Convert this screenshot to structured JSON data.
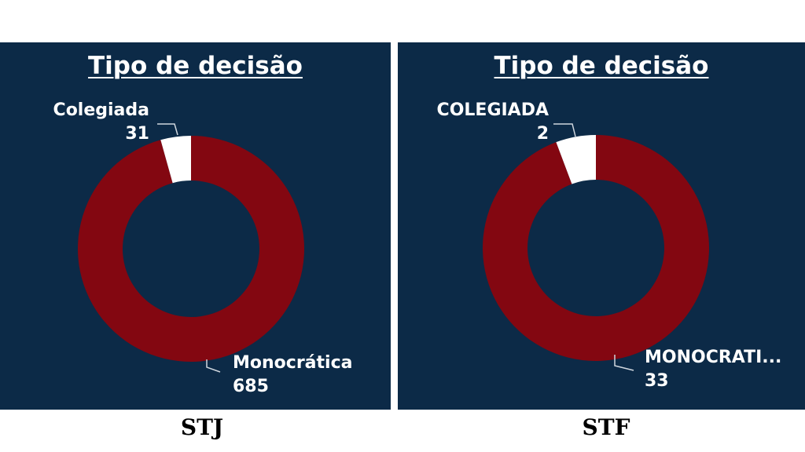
{
  "chart_data": [
    {
      "type": "pie",
      "title": "Tipo de decisão",
      "caption": "STJ",
      "slices": [
        {
          "label": "Colegiada",
          "value": 31,
          "color": "#ffffff"
        },
        {
          "label": "Monocrática",
          "value": 685,
          "color": "#830711"
        }
      ],
      "donut": true,
      "background": "#0c2a47"
    },
    {
      "type": "pie",
      "title": "Tipo de decisão",
      "caption": "STF",
      "slices": [
        {
          "label": "COLEGIADA",
          "value": 2,
          "color": "#ffffff"
        },
        {
          "label": "MONOCRATI...",
          "value": 33,
          "color": "#830711"
        }
      ],
      "donut": true,
      "background": "#0c2a47"
    }
  ]
}
